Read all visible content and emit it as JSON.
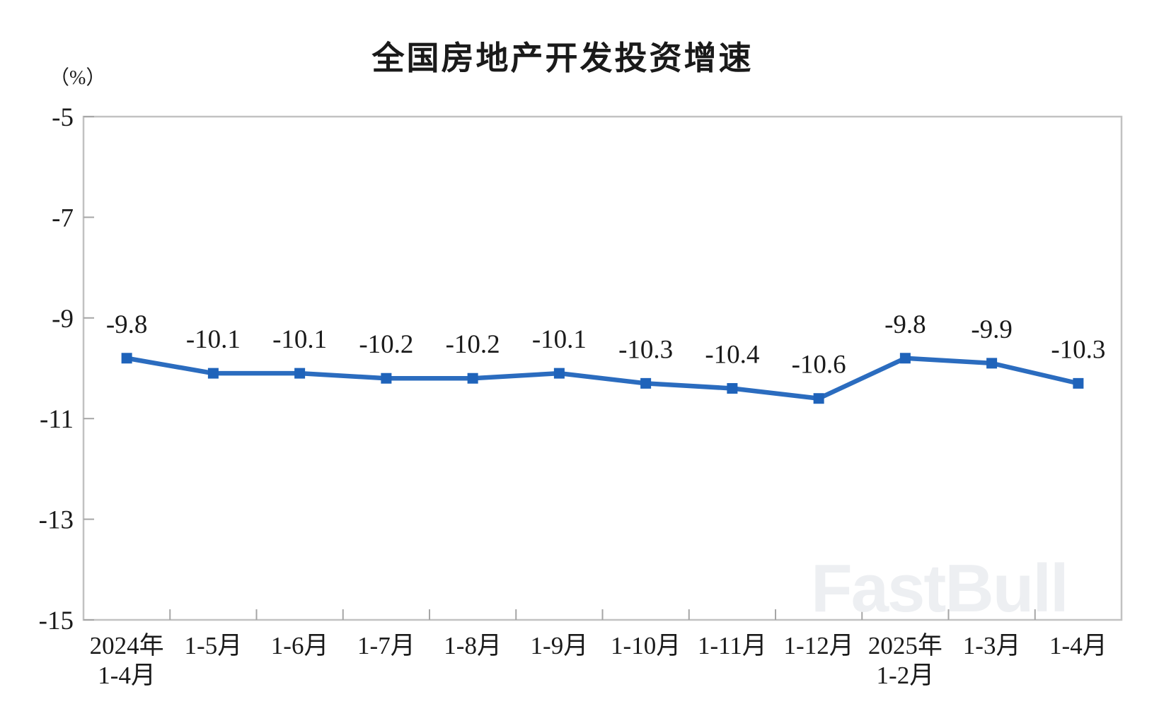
{
  "chart_data": {
    "type": "line",
    "title": "全国房地产开发投资增速",
    "unit_label": "（%）",
    "categories": [
      [
        "2024年",
        "1-4月"
      ],
      [
        "1-5月"
      ],
      [
        "1-6月"
      ],
      [
        "1-7月"
      ],
      [
        "1-8月"
      ],
      [
        "1-9月"
      ],
      [
        "1-10月"
      ],
      [
        "1-11月"
      ],
      [
        "1-12月"
      ],
      [
        "2025年",
        "1-2月"
      ],
      [
        "1-3月"
      ],
      [
        "1-4月"
      ]
    ],
    "values": [
      -9.8,
      -10.1,
      -10.1,
      -10.2,
      -10.2,
      -10.1,
      -10.3,
      -10.4,
      -10.6,
      -9.8,
      -9.9,
      -10.3
    ],
    "data_labels": [
      "-9.8",
      "-10.1",
      "-10.1",
      "-10.2",
      "-10.2",
      "-10.1",
      "-10.3",
      "-10.4",
      "-10.6",
      "-9.8",
      "-9.9",
      "-10.3"
    ],
    "ylim": [
      -15,
      -5
    ],
    "yticks": [
      -5,
      -7,
      -9,
      -11,
      -13,
      -15
    ],
    "xlabel": "",
    "ylabel": "",
    "grid": false,
    "legend": "none",
    "series_color": "#2b6cbf",
    "marker_color": "#1f63ba",
    "axis_color": "#c2c2c2",
    "tick_color": "#a6a6a6",
    "label_color": "#1a1a1a"
  },
  "watermark": {
    "text": "FastBull"
  }
}
